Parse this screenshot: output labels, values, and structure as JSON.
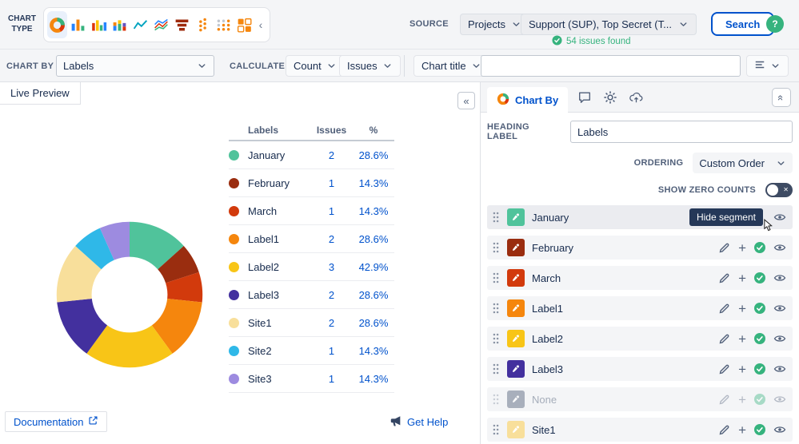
{
  "colors": {
    "accent_blue": "#0052CC",
    "success_green": "#36B37E",
    "toolbar_bg": "#F4F5F7",
    "border": "#DFE1E6",
    "tooltip_bg": "#253858"
  },
  "toolbar": {
    "chart_type_label_line1": "CHART",
    "chart_type_label_line2": "TYPE",
    "chart_types": [
      "donut",
      "bar",
      "column",
      "stacked-bar",
      "line",
      "multi-line",
      "funnel",
      "dot-columns",
      "dot-matrix",
      "treemap"
    ],
    "selected_chart_type": "donut",
    "source_label": "SOURCE",
    "projects_dropdown_label": "Projects",
    "project_scope_value": "Support (SUP), Top Secret (T...",
    "issues_found_text": "54 issues found",
    "search_button_label": "Search",
    "help_button_label": "?"
  },
  "config_bar": {
    "chart_by_label": "CHART BY",
    "chart_by_value": "Labels",
    "calculate_label": "CALCULATE",
    "calculate_value": "Count",
    "calculate_unit": "Issues",
    "chart_title_dropdown_label": "Chart title",
    "chart_title_value": ""
  },
  "preview": {
    "tab_label": "Live Preview",
    "documentation_link_label": "Documentation",
    "get_help_label": "Get Help"
  },
  "chart_data": {
    "type": "pie",
    "subtype": "donut",
    "title": "",
    "categories": [
      "January",
      "February",
      "March",
      "Label1",
      "Label2",
      "Label3",
      "Site1",
      "Site2",
      "Site3"
    ],
    "values": [
      2,
      1,
      1,
      2,
      3,
      2,
      2,
      1,
      1
    ],
    "percent_labels": [
      "28.6%",
      "14.3%",
      "14.3%",
      "28.6%",
      "42.9%",
      "28.6%",
      "28.6%",
      "14.3%",
      "14.3%"
    ],
    "colors": [
      "#50C39B",
      "#9A2D0F",
      "#D23A0C",
      "#F5860D",
      "#F8C517",
      "#43309E",
      "#F8DF9B",
      "#2FB8E8",
      "#9D8BE0"
    ],
    "table_headers": [
      "Labels",
      "Issues",
      "%"
    ],
    "donut_hole_ratio": 0.52,
    "start_angle_deg": 0,
    "direction": "clockwise",
    "legend_position": "right-table"
  },
  "panel": {
    "active_tab_label": "Chart By",
    "heading_label": "HEADING LABEL",
    "heading_value": "Labels",
    "ordering_label": "ORDERING",
    "ordering_value": "Custom Order",
    "zero_counts_label": "SHOW ZERO COUNTS",
    "zero_counts_on": false,
    "hover_tooltip": "Hide segment",
    "segments": [
      {
        "label": "January",
        "color": "#50C39B",
        "hover": true
      },
      {
        "label": "February",
        "color": "#9A2D0F"
      },
      {
        "label": "March",
        "color": "#D23A0C"
      },
      {
        "label": "Label1",
        "color": "#F5860D"
      },
      {
        "label": "Label2",
        "color": "#F8C517"
      },
      {
        "label": "Label3",
        "color": "#43309E"
      },
      {
        "label": "None",
        "color": "#6B778C",
        "disabled": true
      },
      {
        "label": "Site1",
        "color": "#F8DF9B"
      }
    ]
  }
}
